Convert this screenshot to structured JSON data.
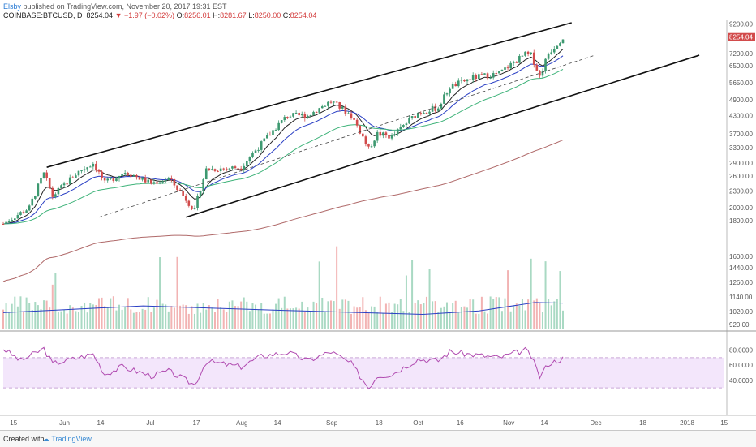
{
  "header": {
    "user": "Elsby",
    "published": "published on TradingView.com, November 20, 2017 19:31 EST",
    "symbol": "COINBASE:BTCUSD, D",
    "last": "8254.04",
    "change": "−1.97 (−0.02%)",
    "o_label": "O:",
    "o_value": "8256.01",
    "h_label": "H:",
    "h_value": "8281.67",
    "l_label": "L:",
    "l_value": "8250.00",
    "c_label": "C:",
    "c_value": "8254.04"
  },
  "footer": {
    "created_with": "Created with",
    "brand": "TradingView"
  },
  "colors": {
    "up": "#3d9970",
    "down": "#d24b4b",
    "ema_fast": "#222222",
    "ema_mid": "#2a3fc4",
    "ema_slow": "#3fb37a",
    "ma_long": "#b06a6a",
    "volume_ma": "#2a3fc4",
    "rsi": "#b04ab0",
    "rsi_band": "#f3e6fb",
    "price_line": "#d24b4b"
  },
  "chart_data": {
    "type": "candlestick",
    "price_axis": {
      "scale": "log",
      "range": [
        1550,
        9300
      ],
      "ticks": [
        "9200.00",
        "8254.04",
        "7200.00",
        "6500.00",
        "5650.00",
        "4900.00",
        "4300.00",
        "3700.00",
        "3300.00",
        "2900.00",
        "2600.00",
        "2300.00",
        "2000.00",
        "1800.00"
      ],
      "last_price": 8254.04
    },
    "volume_axis": {
      "ticks": [
        "1600.00",
        "1440.00",
        "1260.00",
        "1140.00",
        "1020.00",
        "920.00"
      ]
    },
    "rsi_axis": {
      "ticks": [
        "80.0000",
        "60.0000",
        "40.0000"
      ],
      "upper": 70,
      "lower": 30
    },
    "time_axis": {
      "labels": [
        "15",
        "Jun",
        "14",
        "Jul",
        "17",
        "Aug",
        "14",
        "Sep",
        "18",
        "Oct",
        "16",
        "Nov",
        "14",
        "Dec",
        "18",
        "2018",
        "15"
      ]
    },
    "ohlc_start": "2017-05-11",
    "ohlc_end": "2017-11-20",
    "close_path": [
      [
        "2017-05-11",
        1750
      ],
      [
        "2017-05-20",
        2000
      ],
      [
        "2017-05-25",
        2650
      ],
      [
        "2017-05-28",
        2200
      ],
      [
        "2017-06-06",
        2700
      ],
      [
        "2017-06-11",
        2900
      ],
      [
        "2017-06-15",
        2450
      ],
      [
        "2017-06-22",
        2700
      ],
      [
        "2017-07-01",
        2450
      ],
      [
        "2017-07-07",
        2550
      ],
      [
        "2017-07-16",
        1950
      ],
      [
        "2017-07-20",
        2750
      ],
      [
        "2017-08-01",
        2800
      ],
      [
        "2017-08-08",
        3400
      ],
      [
        "2017-08-17",
        4300
      ],
      [
        "2017-08-24",
        4300
      ],
      [
        "2017-09-01",
        4850
      ],
      [
        "2017-09-08",
        4300
      ],
      [
        "2017-09-14",
        3250
      ],
      [
        "2017-09-17",
        3700
      ],
      [
        "2017-09-22",
        3600
      ],
      [
        "2017-10-01",
        4400
      ],
      [
        "2017-10-08",
        4600
      ],
      [
        "2017-10-12",
        5450
      ],
      [
        "2017-10-20",
        5900
      ],
      [
        "2017-10-29",
        6100
      ],
      [
        "2017-11-07",
        7150
      ],
      [
        "2017-11-09",
        7100
      ],
      [
        "2017-11-12",
        5950
      ],
      [
        "2017-11-15",
        7200
      ],
      [
        "2017-11-20",
        8254.04
      ]
    ],
    "volume_ma_path": [
      [
        0,
        1060
      ],
      [
        0.25,
        1120
      ],
      [
        0.5,
        1080
      ],
      [
        0.75,
        1045
      ],
      [
        0.85,
        1075
      ],
      [
        0.95,
        1150
      ],
      [
        1,
        1145
      ]
    ],
    "rsi_path": [
      [
        "2017-05-11",
        82
      ],
      [
        "2017-05-17",
        66
      ],
      [
        "2017-05-25",
        82
      ],
      [
        "2017-05-28",
        62
      ],
      [
        "2017-06-06",
        70
      ],
      [
        "2017-06-11",
        75
      ],
      [
        "2017-06-15",
        48
      ],
      [
        "2017-06-21",
        58
      ],
      [
        "2017-07-01",
        46
      ],
      [
        "2017-07-07",
        52
      ],
      [
        "2017-07-16",
        34
      ],
      [
        "2017-07-20",
        65
      ],
      [
        "2017-08-01",
        58
      ],
      [
        "2017-08-08",
        72
      ],
      [
        "2017-08-17",
        77
      ],
      [
        "2017-08-24",
        66
      ],
      [
        "2017-09-01",
        78
      ],
      [
        "2017-09-08",
        62
      ],
      [
        "2017-09-14",
        30
      ],
      [
        "2017-09-17",
        46
      ],
      [
        "2017-09-22",
        48
      ],
      [
        "2017-10-01",
        68
      ],
      [
        "2017-10-08",
        66
      ],
      [
        "2017-10-12",
        78
      ],
      [
        "2017-10-20",
        74
      ],
      [
        "2017-10-29",
        70
      ],
      [
        "2017-11-07",
        80
      ],
      [
        "2017-11-09",
        72
      ],
      [
        "2017-11-12",
        45
      ],
      [
        "2017-11-15",
        62
      ],
      [
        "2017-11-20",
        69
      ]
    ]
  }
}
